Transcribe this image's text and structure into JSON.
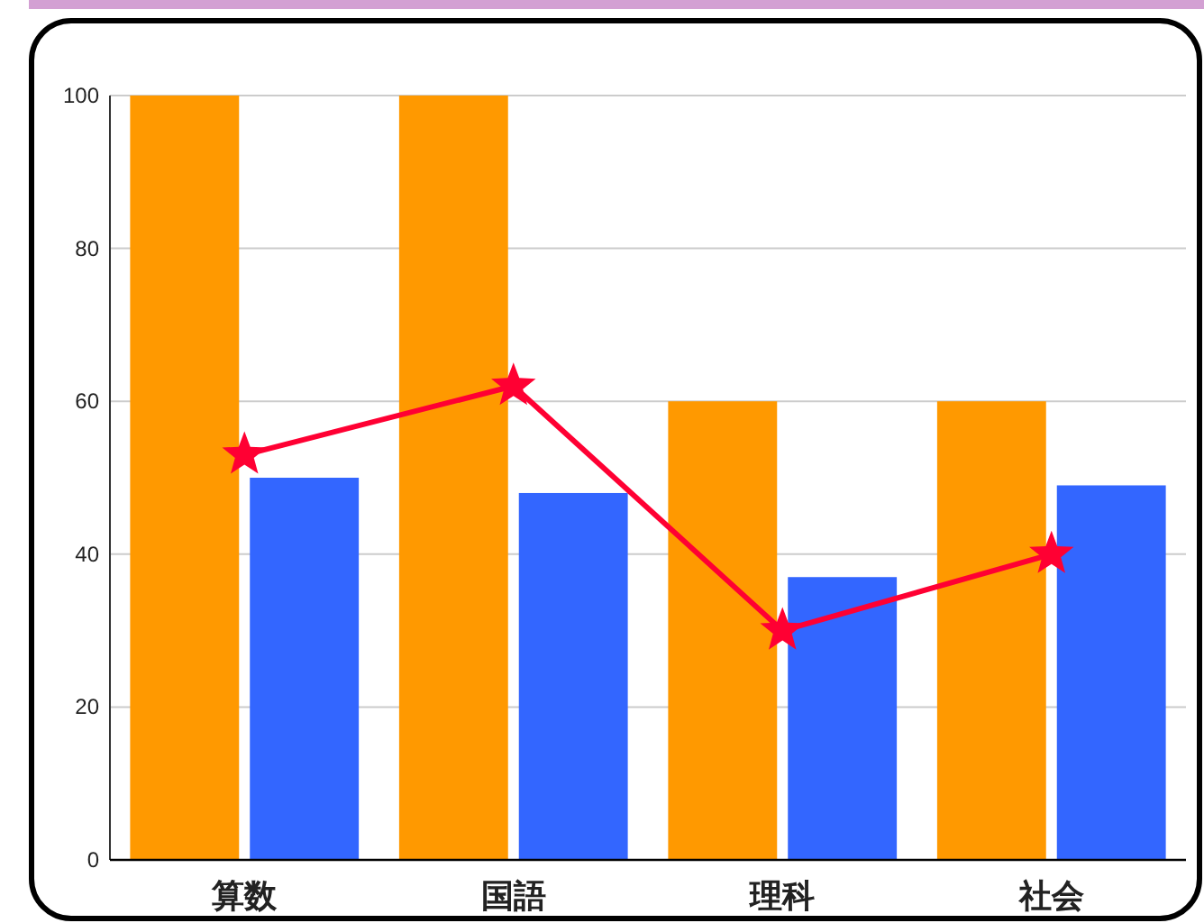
{
  "chart_data": {
    "type": "bar",
    "categories": [
      "算数",
      "国語",
      "理科",
      "社会"
    ],
    "series": [
      {
        "color": "#ff9900",
        "values": [
          100,
          100,
          60,
          60
        ]
      },
      {
        "color": "#3366ff",
        "values": [
          50,
          48,
          37,
          49
        ]
      },
      {
        "type": "line",
        "color": "#ff0033",
        "marker": "star",
        "values": [
          53,
          62,
          30,
          40
        ]
      }
    ],
    "ylim": [
      0,
      100
    ],
    "yticks": [
      0,
      20,
      40,
      60,
      80,
      100
    ],
    "grid": "y"
  }
}
